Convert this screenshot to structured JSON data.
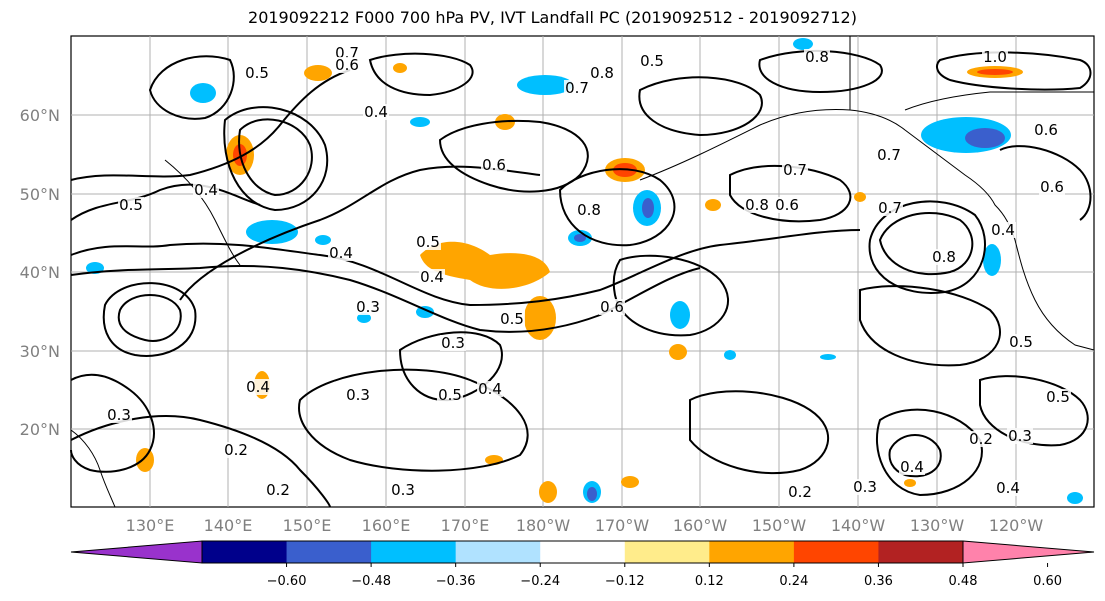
{
  "title": "2019092212 F000 700 hPa PV, IVT Landfall PC (2019092512 - 2019092712)",
  "map": {
    "lat_labels": [
      "60°N",
      "50°N",
      "40°N",
      "30°N",
      "20°N"
    ],
    "lon_labels": [
      "130°E",
      "140°E",
      "150°E",
      "160°E",
      "170°E",
      "180°W",
      "170°W",
      "160°W",
      "150°W",
      "140°W",
      "130°W",
      "120°W"
    ],
    "contour_labels": [
      "0.7",
      "0.6",
      "0.5",
      "0.4",
      "0.6",
      "0.8",
      "0.7",
      "0.8",
      "0.5",
      "0.6",
      "0.5",
      "0.4",
      "0.3",
      "0.4",
      "0.5",
      "0.3",
      "0.2",
      "0.2",
      "0.3",
      "0.4",
      "0.3",
      "0.2",
      "0.3",
      "0.4",
      "0.5",
      "0.6",
      "0.8",
      "0.7",
      "0.5",
      "0.4",
      "0.8",
      "0.7",
      "0.6",
      "0.5",
      "0.4",
      "0.3",
      "0.2",
      "0.3",
      "0.4",
      "0.4",
      "0.5",
      "0.6",
      "0.7",
      "0.8",
      "1.0"
    ],
    "fill_colors": {
      "neg_weak": "#00bfff",
      "neg_strong": "#3a5fcd",
      "pos_weak": "#ffa500",
      "pos_strong": "#ff4500",
      "pos_faint": "#ffe88a"
    }
  },
  "colorbar": {
    "colors": [
      "#9932cc",
      "#00008b",
      "#3a5fcd",
      "#00bfff",
      "#b0e2ff",
      "#ffffff",
      "#ffec8b",
      "#ffa500",
      "#ff4500",
      "#b22222",
      "#ff82ab"
    ],
    "tick_labels": [
      "−0.60",
      "−0.48",
      "−0.36",
      "−0.24",
      "−0.12",
      "0.12",
      "0.24",
      "0.36",
      "0.48",
      "0.60"
    ]
  }
}
